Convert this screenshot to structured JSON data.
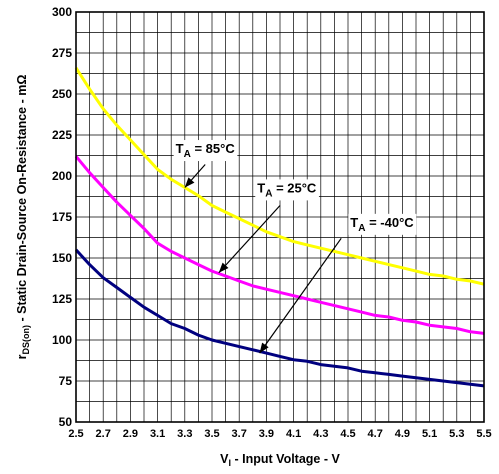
{
  "chart_data": {
    "type": "line",
    "xlabel_main": "V",
    "xlabel_sub": "I",
    "xlabel_rest": " - Input Voltage - V",
    "ylabel_main": "r",
    "ylabel_sub": "DS(on)",
    "ylabel_rest": " - Static Drain-Source On-Resistance - mΩ",
    "xlim": [
      2.5,
      5.5
    ],
    "ylim": [
      50,
      300
    ],
    "x_ticks": [
      2.5,
      2.7,
      2.9,
      3.1,
      3.3,
      3.5,
      3.7,
      3.9,
      4.1,
      4.3,
      4.5,
      4.7,
      4.9,
      5.1,
      5.3,
      5.5
    ],
    "x_tick_labels": [
      "2.5",
      "2.7",
      "2.9",
      "3.1",
      "3.3",
      "3.5",
      "3.7",
      "3.9",
      "4.1",
      "4.3",
      "4.5",
      "4.7",
      "4.9",
      "5.1",
      "5.3",
      "5.5"
    ],
    "y_ticks": [
      50,
      75,
      100,
      125,
      150,
      175,
      200,
      225,
      250,
      275,
      300
    ],
    "y_tick_labels": [
      "50",
      "75",
      "100",
      "125",
      "150",
      "175",
      "200",
      "225",
      "250",
      "275",
      "300"
    ],
    "x_minor_step": 0.1,
    "y_minor_step": 12.5,
    "grid": true,
    "series": [
      {
        "name_main": "T",
        "name_sub": "A",
        "name_rest": " = 85°C",
        "color": "#ffff00",
        "x": [
          2.5,
          2.6,
          2.7,
          2.8,
          2.9,
          3.0,
          3.1,
          3.2,
          3.3,
          3.4,
          3.5,
          3.6,
          3.7,
          3.8,
          3.9,
          4.0,
          4.1,
          4.2,
          4.3,
          4.4,
          4.5,
          4.6,
          4.7,
          4.8,
          4.9,
          5.0,
          5.1,
          5.2,
          5.3,
          5.4,
          5.5
        ],
        "y": [
          266,
          253,
          241,
          231,
          222,
          213,
          204,
          198,
          193,
          188,
          182,
          178,
          174,
          170,
          166,
          163,
          160,
          158,
          156,
          154,
          152,
          150,
          148,
          146,
          144,
          142,
          140,
          139,
          137,
          136,
          134
        ]
      },
      {
        "name_main": "T",
        "name_sub": "A",
        "name_rest": " = 25°C",
        "color": "#ff00ff",
        "x": [
          2.5,
          2.6,
          2.7,
          2.8,
          2.9,
          3.0,
          3.1,
          3.2,
          3.3,
          3.4,
          3.5,
          3.6,
          3.7,
          3.8,
          3.9,
          4.0,
          4.1,
          4.2,
          4.3,
          4.4,
          4.5,
          4.6,
          4.7,
          4.8,
          4.9,
          5.0,
          5.1,
          5.2,
          5.3,
          5.4,
          5.5
        ],
        "y": [
          212,
          202,
          193,
          184,
          176,
          168,
          159,
          154,
          150,
          146,
          142,
          139,
          136,
          133,
          131,
          129,
          127,
          125,
          123,
          121,
          119,
          117,
          115,
          114,
          112,
          111,
          109,
          108,
          107,
          105,
          104
        ]
      },
      {
        "name_main": "T",
        "name_sub": "A",
        "name_rest": " = -40°C",
        "color": "#00007f",
        "x": [
          2.5,
          2.6,
          2.7,
          2.8,
          2.9,
          3.0,
          3.1,
          3.2,
          3.3,
          3.4,
          3.5,
          3.6,
          3.7,
          3.8,
          3.9,
          4.0,
          4.1,
          4.2,
          4.3,
          4.4,
          4.5,
          4.6,
          4.7,
          4.8,
          4.9,
          5.0,
          5.1,
          5.2,
          5.3,
          5.4,
          5.5
        ],
        "y": [
          155,
          146,
          138,
          132,
          126,
          120,
          115,
          110,
          107,
          103,
          100,
          98,
          96,
          94,
          92,
          90,
          88,
          87,
          85,
          84,
          83,
          81,
          80,
          79,
          78,
          77,
          76,
          75,
          74,
          73,
          72
        ]
      }
    ],
    "annotations": [
      {
        "series_index": 0,
        "label_x": 3.45,
        "label_y": 214,
        "arrow_from_x": 3.45,
        "arrow_from_y": 207,
        "arrow_to_x": 3.3,
        "arrow_to_y": 193
      },
      {
        "series_index": 1,
        "label_x": 4.05,
        "label_y": 190,
        "arrow_from_x": 4.0,
        "arrow_from_y": 182,
        "arrow_to_x": 3.55,
        "arrow_to_y": 141
      },
      {
        "series_index": 2,
        "label_x": 4.75,
        "label_y": 169,
        "arrow_from_x": 4.45,
        "arrow_from_y": 162,
        "arrow_to_x": 3.85,
        "arrow_to_y": 92
      }
    ]
  }
}
